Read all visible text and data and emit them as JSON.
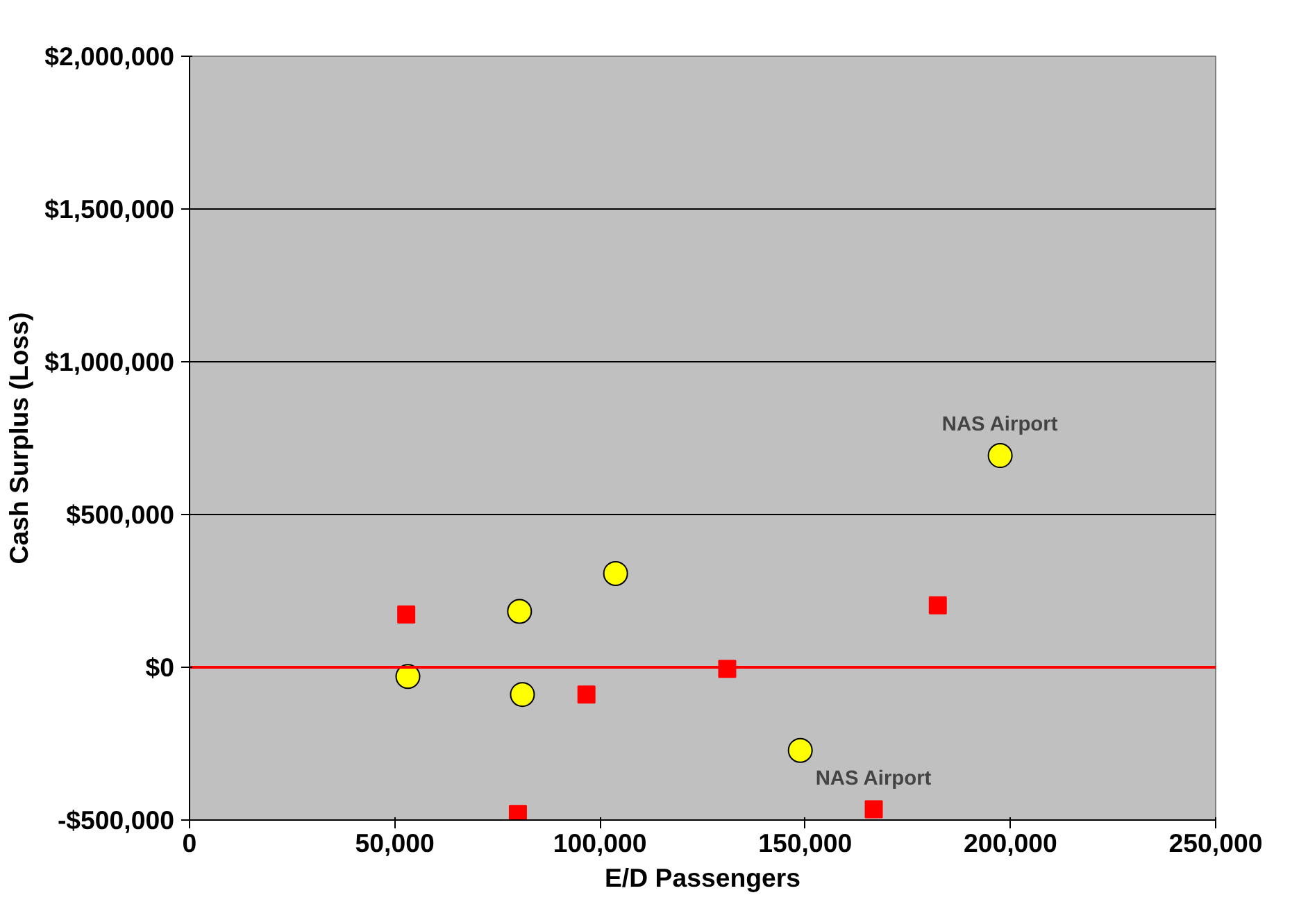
{
  "chart_data": {
    "type": "scatter",
    "xlabel": "E/D Passengers",
    "ylabel": "Cash Surplus (Loss)",
    "xlim": [
      0,
      250000
    ],
    "ylim": [
      -500000,
      2000000
    ],
    "xticks": [
      {
        "value": 0,
        "label": "0"
      },
      {
        "value": 50000,
        "label": "50,000"
      },
      {
        "value": 100000,
        "label": "100,000"
      },
      {
        "value": 150000,
        "label": "150,000"
      },
      {
        "value": 200000,
        "label": "200,000"
      },
      {
        "value": 250000,
        "label": "250,000"
      }
    ],
    "yticks": [
      {
        "value": -500000,
        "label": "-$500,000"
      },
      {
        "value": 0,
        "label": "$0"
      },
      {
        "value": 500000,
        "label": "$500,000"
      },
      {
        "value": 1000000,
        "label": "$1,000,000"
      },
      {
        "value": 1500000,
        "label": "$1,500,000"
      },
      {
        "value": 2000000,
        "label": "$2,000,000"
      }
    ],
    "grid": "y",
    "series": [
      {
        "color": "#ffff00",
        "marker": "circle",
        "x": [
          53200,
          80400,
          81100,
          103800,
          148800,
          197500
        ],
        "values": [
          -30000,
          183000,
          -89000,
          307000,
          -272000,
          693000
        ]
      },
      {
        "color": "#ff0000",
        "marker": "square",
        "x": [
          52800,
          80000,
          96700,
          131000,
          166700,
          182300
        ],
        "values": [
          173000,
          -480000,
          -89000,
          -5000,
          -465000,
          203000
        ]
      }
    ],
    "ref_lines": [
      {
        "axis": "y",
        "value": 0,
        "color": "#ff0000"
      }
    ],
    "annotations": [
      {
        "text": "NAS Airport",
        "x": 197500,
        "y": 693000
      },
      {
        "text": "NAS Airport",
        "x": 166700,
        "y": -465000
      }
    ]
  }
}
